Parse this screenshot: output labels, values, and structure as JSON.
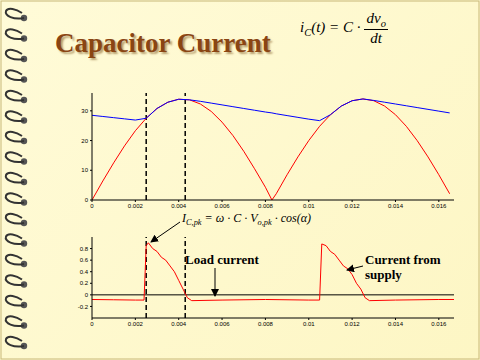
{
  "title": "Capacitor Current",
  "formula": {
    "lhs": [
      {
        "text": "i",
        "sub": "C"
      },
      {
        "text": "(t) = C ·"
      }
    ],
    "numerator": [
      {
        "text": "dv",
        "sub": "o"
      }
    ],
    "denominator": [
      {
        "text": "dt"
      }
    ]
  },
  "annotations": {
    "peak": [
      {
        "text": "I",
        "sub": "C,pk"
      },
      {
        "text": " = ω · C · V",
        "sub": "o,pk"
      },
      {
        "text": " · cos(α)"
      }
    ],
    "load": "Load current",
    "supply": "Current from supply"
  },
  "chart_data": [
    {
      "type": "line",
      "xlim": [
        0,
        0.0167
      ],
      "xticks": [
        0,
        0.002,
        0.004,
        0.006,
        0.008,
        0.01,
        0.012,
        0.014,
        0.016
      ],
      "ylim": [
        0,
        36
      ],
      "yticks": [
        0,
        10,
        20,
        30
      ],
      "markers_x": [
        0.0025,
        0.0043
      ],
      "x": [
        0,
        0.0005,
        0.001,
        0.0015,
        0.002,
        0.0025,
        0.003,
        0.0035,
        0.004,
        0.0045,
        0.005,
        0.0055,
        0.006,
        0.0065,
        0.007,
        0.0075,
        0.008,
        0.0083,
        0.0085,
        0.009,
        0.0095,
        0.01,
        0.0105,
        0.011,
        0.0115,
        0.012,
        0.0125,
        0.013,
        0.0135,
        0.014,
        0.0145,
        0.015,
        0.0155,
        0.016,
        0.0165
      ],
      "series": [
        {
          "color": "#ff0000",
          "values": [
            0,
            6.4,
            12.5,
            18.2,
            23.3,
            27.5,
            30.8,
            32.9,
            33.9,
            33.7,
            32.3,
            29.8,
            26.2,
            21.7,
            16.4,
            10.5,
            4.3,
            0,
            2.1,
            8.5,
            14.5,
            20.0,
            24.8,
            28.7,
            31.6,
            33.4,
            34.0,
            33.4,
            31.6,
            28.7,
            24.8,
            20.0,
            14.5,
            8.5,
            2.1
          ]
        },
        {
          "color": "#0000ff",
          "values": [
            28.5,
            28.1,
            27.7,
            27.3,
            26.9,
            27.5,
            30.8,
            32.9,
            33.9,
            33.7,
            33.2,
            32.6,
            32.0,
            31.4,
            30.8,
            30.2,
            29.6,
            29.3,
            29.0,
            28.4,
            27.8,
            27.2,
            26.7,
            28.7,
            31.6,
            33.4,
            34.0,
            33.5,
            32.9,
            32.3,
            31.7,
            31.1,
            30.5,
            29.9,
            29.3
          ]
        }
      ]
    },
    {
      "type": "line",
      "xlim": [
        0,
        0.0167
      ],
      "xticks": [
        0,
        0.002,
        0.004,
        0.006,
        0.008,
        0.01,
        0.012,
        0.014,
        0.016
      ],
      "ylim": [
        -0.4,
        1.0
      ],
      "yticks": [
        -0.2,
        0,
        0.2,
        0.4,
        0.6,
        0.8
      ],
      "hline": 0,
      "markers_x": [
        0.0025,
        0.0043
      ],
      "x": [
        0,
        0.001,
        0.002,
        0.0024,
        0.0025,
        0.0026,
        0.0028,
        0.003,
        0.0032,
        0.0034,
        0.0036,
        0.0038,
        0.004,
        0.0042,
        0.0044,
        0.0046,
        0.006,
        0.008,
        0.01,
        0.0105,
        0.0106,
        0.0108,
        0.011,
        0.0112,
        0.0114,
        0.0116,
        0.0118,
        0.012,
        0.0122,
        0.0124,
        0.0126,
        0.0128,
        0.014,
        0.016,
        0.0167
      ],
      "series": [
        {
          "color": "#ff0000",
          "values": [
            -0.08,
            -0.085,
            -0.09,
            -0.09,
            0.85,
            0.9,
            0.8,
            0.75,
            0.65,
            0.6,
            0.5,
            0.4,
            0.25,
            0.1,
            -0.05,
            -0.1,
            -0.09,
            -0.08,
            -0.09,
            -0.09,
            0.88,
            0.85,
            0.75,
            0.7,
            0.6,
            0.5,
            0.45,
            0.35,
            0.2,
            0.1,
            -0.05,
            -0.1,
            -0.09,
            -0.08,
            -0.08
          ]
        }
      ]
    }
  ]
}
